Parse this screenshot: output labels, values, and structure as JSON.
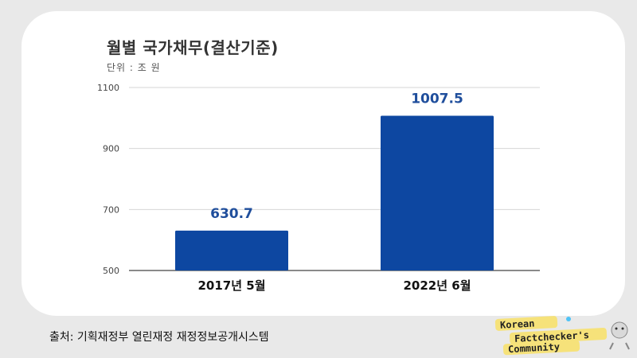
{
  "title": "월별 국가채무(결산기준)",
  "subtitle": "단위 : 조 원",
  "source": "출처: 기획재정부 열린재정 재정정보공개시스템",
  "logo": {
    "line1": "Korean",
    "line2": "Factchecker's",
    "line3": "Community"
  },
  "colors": {
    "bar": "#0d47a1",
    "value_label": "#1f4e9c",
    "background": "#e9e9e9"
  },
  "chart_data": {
    "type": "bar",
    "categories": [
      "2017년 5월",
      "2022년 6월"
    ],
    "values": [
      630.7,
      1007.5
    ],
    "value_labels": [
      "630.7",
      "1007.5"
    ],
    "title": "월별 국가채무(결산기준)",
    "subtitle": "단위 : 조 원",
    "ylim": [
      500,
      1100
    ],
    "yticks": [
      500,
      700,
      900,
      1100
    ],
    "ytick_labels": [
      "500",
      "700",
      "900",
      "1100"
    ],
    "grid": true
  }
}
